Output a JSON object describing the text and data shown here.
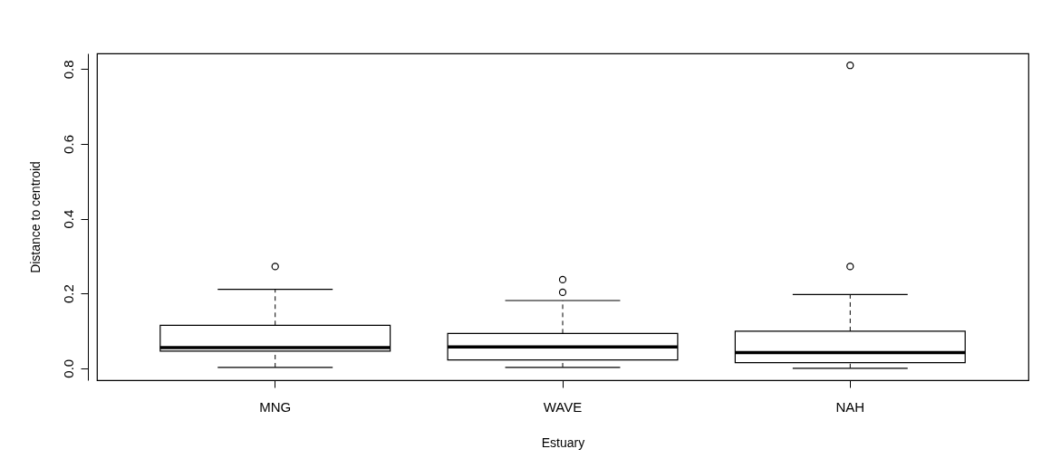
{
  "chart_data": {
    "type": "box",
    "xlabel": "Estuary",
    "ylabel": "Distance to centroid",
    "categories": [
      "MNG",
      "WAVE",
      "NAH"
    ],
    "boxes": [
      {
        "low": 0.002,
        "q1": 0.046,
        "median": 0.055,
        "q3": 0.115,
        "high": 0.211,
        "outliers": [
          0.272
        ]
      },
      {
        "low": 0.002,
        "q1": 0.022,
        "median": 0.057,
        "q3": 0.093,
        "high": 0.181,
        "outliers": [
          0.203,
          0.237
        ]
      },
      {
        "low": 0.0,
        "q1": 0.015,
        "median": 0.042,
        "q3": 0.099,
        "high": 0.197,
        "outliers": [
          0.272,
          0.81
        ]
      }
    ],
    "ylim": [
      -0.032,
      0.842
    ],
    "yticks": [
      {
        "value": 0,
        "label": "0.0"
      },
      {
        "value": 0.2,
        "label": "0.2"
      },
      {
        "value": 0.4,
        "label": "0.4"
      },
      {
        "value": 0.6,
        "label": "0.6"
      },
      {
        "value": 0.8,
        "label": "0.8"
      }
    ],
    "grid": false
  }
}
